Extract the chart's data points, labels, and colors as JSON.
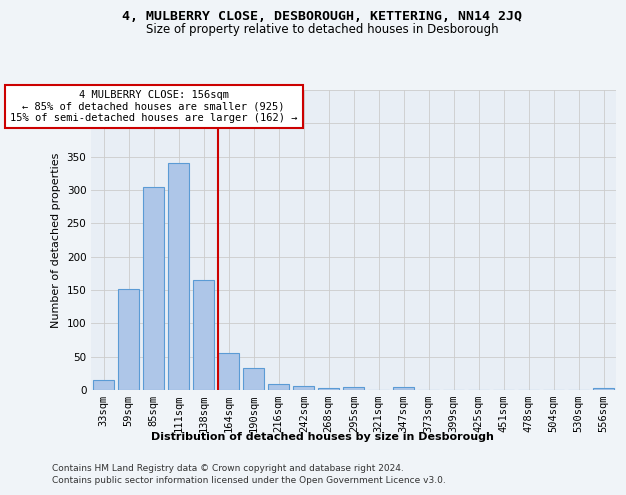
{
  "title1": "4, MULBERRY CLOSE, DESBOROUGH, KETTERING, NN14 2JQ",
  "title2": "Size of property relative to detached houses in Desborough",
  "xlabel": "Distribution of detached houses by size in Desborough",
  "ylabel": "Number of detached properties",
  "footnote1": "Contains HM Land Registry data © Crown copyright and database right 2024.",
  "footnote2": "Contains public sector information licensed under the Open Government Licence v3.0.",
  "bar_labels": [
    "33sqm",
    "59sqm",
    "85sqm",
    "111sqm",
    "138sqm",
    "164sqm",
    "190sqm",
    "216sqm",
    "242sqm",
    "268sqm",
    "295sqm",
    "321sqm",
    "347sqm",
    "373sqm",
    "399sqm",
    "425sqm",
    "451sqm",
    "478sqm",
    "504sqm",
    "530sqm",
    "556sqm"
  ],
  "bar_values": [
    15,
    152,
    305,
    340,
    165,
    55,
    33,
    9,
    6,
    3,
    4,
    0,
    4,
    0,
    0,
    0,
    0,
    0,
    0,
    0,
    3
  ],
  "bar_color": "#aec6e8",
  "bar_edge_color": "#5b9bd5",
  "bar_edge_width": 0.8,
  "reference_line_color": "#cc0000",
  "annotation_line1": "4 MULBERRY CLOSE: 156sqm",
  "annotation_line2": "← 85% of detached houses are smaller (925)",
  "annotation_line3": "15% of semi-detached houses are larger (162) →",
  "annotation_box_color": "#ffffff",
  "annotation_box_edge": "#cc0000",
  "ylim": [
    0,
    450
  ],
  "yticks": [
    0,
    50,
    100,
    150,
    200,
    250,
    300,
    350,
    400,
    450
  ],
  "grid_color": "#cccccc",
  "plot_bg_color": "#e8eef5",
  "fig_bg_color": "#f0f4f8",
  "title1_fontsize": 9.5,
  "title2_fontsize": 8.5,
  "axis_label_fontsize": 8,
  "tick_fontsize": 7.5,
  "annotation_fontsize": 7.5,
  "footnote_fontsize": 6.5,
  "ylabel_fontsize": 8
}
